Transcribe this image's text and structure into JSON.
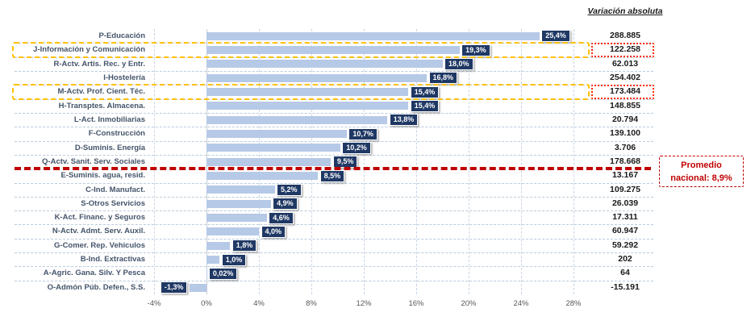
{
  "header": {
    "variacion_absoluta": "Variación absoluta"
  },
  "callout": {
    "line1": "Promedio",
    "line2": "nacional: 8,9%"
  },
  "chart_data": {
    "type": "bar",
    "orientation": "horizontal",
    "title": "",
    "xlabel": "",
    "ylabel": "",
    "xlim": [
      -4,
      28
    ],
    "grid": "vertical-dashed",
    "legend": "none",
    "x_tick_values": [
      -4,
      0,
      4,
      8,
      12,
      16,
      20,
      24,
      28
    ],
    "x_ticks": [
      "-4%",
      "0%",
      "4%",
      "8%",
      "12%",
      "16%",
      "20%",
      "24%",
      "28%"
    ],
    "categories": [
      "P-Educación",
      "J-Información y Comunicación",
      "R-Actv. Artis. Rec. y Entr.",
      "I-Hostelería",
      "M-Actv. Prof. Cient. Téc.",
      "H-Transptes. Almacena.",
      "L-Act. Inmobiliarias",
      "F-Construcción",
      "D-Suminis. Energía",
      "Q-Actv. Sanit. Serv. Sociales",
      "E-Suminis. agua, resid.",
      "C-Ind. Manufact.",
      "S-Otros Servicios",
      "K-Act. Financ. y Seguros",
      "N-Actv. Admt. Serv. Auxil.",
      "G-Comer. Rep. Vehículos",
      "B-Ind. Extractivas",
      "A-Agric. Gana. Silv. Y Pesca",
      "O-Admón Púb. Defen., S.S."
    ],
    "values": [
      25.4,
      19.3,
      18.0,
      16.8,
      15.4,
      15.4,
      13.8,
      10.7,
      10.2,
      9.5,
      8.5,
      5.2,
      4.9,
      4.6,
      4.0,
      1.8,
      1.0,
      0.02,
      -1.3
    ],
    "value_labels": [
      "25,4%",
      "19,3%",
      "18,0%",
      "16,8%",
      "15,4%",
      "15,4%",
      "13,8%",
      "10,7%",
      "10,2%",
      "9,5%",
      "8,5%",
      "5,2%",
      "4,9%",
      "4,6%",
      "4,0%",
      "1,8%",
      "1,0%",
      "0,02%",
      "-1,3%"
    ],
    "abs_labels": [
      "288.885",
      "122.258",
      "62.013",
      "254.402",
      "173.484",
      "148.855",
      "20.794",
      "139.100",
      "3.706",
      "178.668",
      "13.167",
      "109.275",
      "26.039",
      "17.311",
      "60.947",
      "59.292",
      "202",
      "64",
      "-15.191"
    ],
    "highlighted_rows": [
      1,
      4
    ],
    "national_average_after_row": 9,
    "national_average_value": "8,9%",
    "colors": {
      "bar": "#b6c9e7",
      "value_label_box": "#1f3864",
      "highlight_box": "#ffc000",
      "highlight_number_box": "#ff2a00",
      "average_line": "#c00000",
      "callout_text": "#c00000",
      "category_text": "#44546a",
      "tick_text": "#595959",
      "number_text": "#1a1a1a",
      "separator": "#b9cbde",
      "gridline": "#c9d6e4"
    }
  }
}
